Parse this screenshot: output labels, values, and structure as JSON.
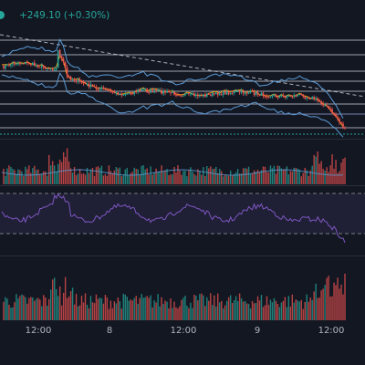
{
  "header": {
    "price_change": "+249.10 (+0.30%)",
    "accent": "#26a69a"
  },
  "colors": {
    "up": "#26a69a",
    "down": "#ef5350",
    "band": "#5b9bd5",
    "ma": "#f7a21b",
    "rsi": "#7e57c2",
    "grid": "#2a2e39",
    "level": "#d1d4dc"
  },
  "time_axis": {
    "labels": [
      "12:00",
      "8",
      "12:00",
      "9",
      "12:00"
    ]
  }
}
